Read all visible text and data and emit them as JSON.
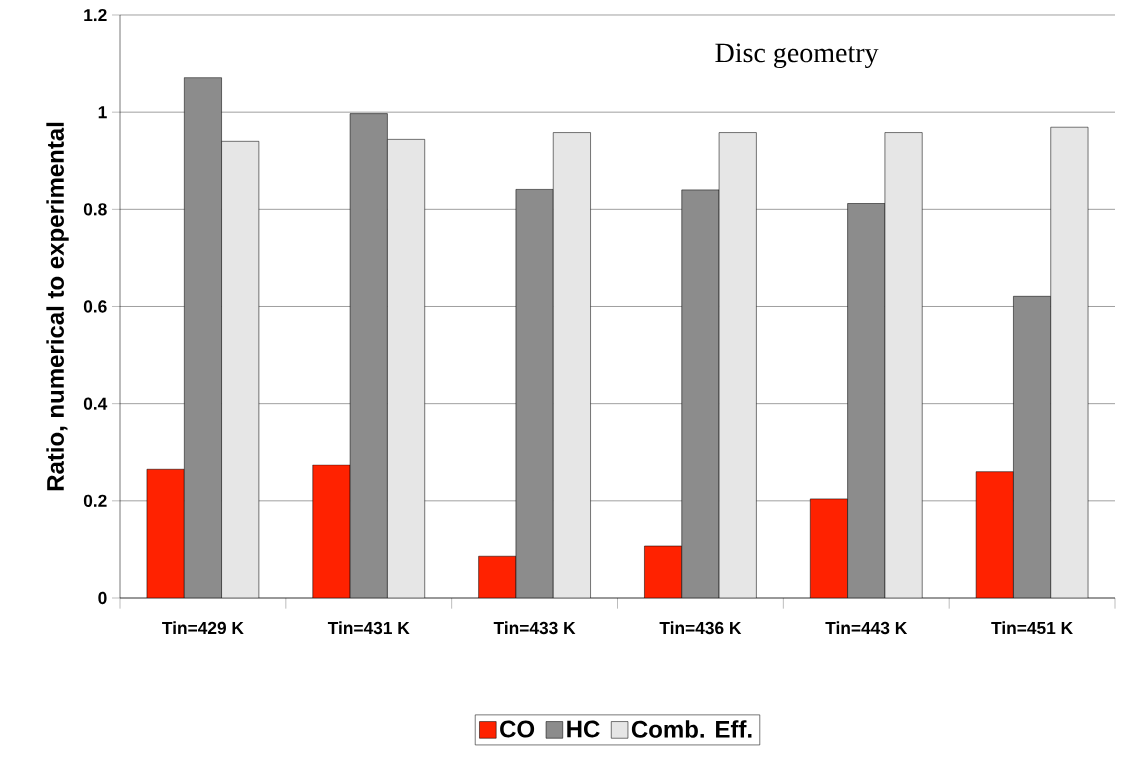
{
  "chart_data": {
    "type": "bar",
    "title": "Disc geometry",
    "ylabel": "Ratio, numerical to experimental",
    "categories": [
      "Tin=429 K",
      "Tin=431 K",
      "Tin=433 K",
      "Tin=436 K",
      "Tin=443 K",
      "Tin=451 K"
    ],
    "series": [
      {
        "name": "CO",
        "color": "#ff2200",
        "values": [
          0.265,
          0.274,
          0.086,
          0.107,
          0.204,
          0.26
        ]
      },
      {
        "name": "HC",
        "color": "#8c8c8c",
        "values": [
          1.071,
          0.997,
          0.841,
          0.84,
          0.812,
          0.621
        ]
      },
      {
        "name": "Comb. Eff.",
        "color": "#e6e6e6",
        "values": [
          0.94,
          0.944,
          0.958,
          0.958,
          0.958,
          0.969
        ]
      }
    ],
    "ylim": [
      0,
      1.2
    ],
    "yticks": [
      0,
      0.2,
      0.4,
      0.6,
      0.8,
      1,
      1.2
    ],
    "grid": "y",
    "legend": "bottom"
  }
}
